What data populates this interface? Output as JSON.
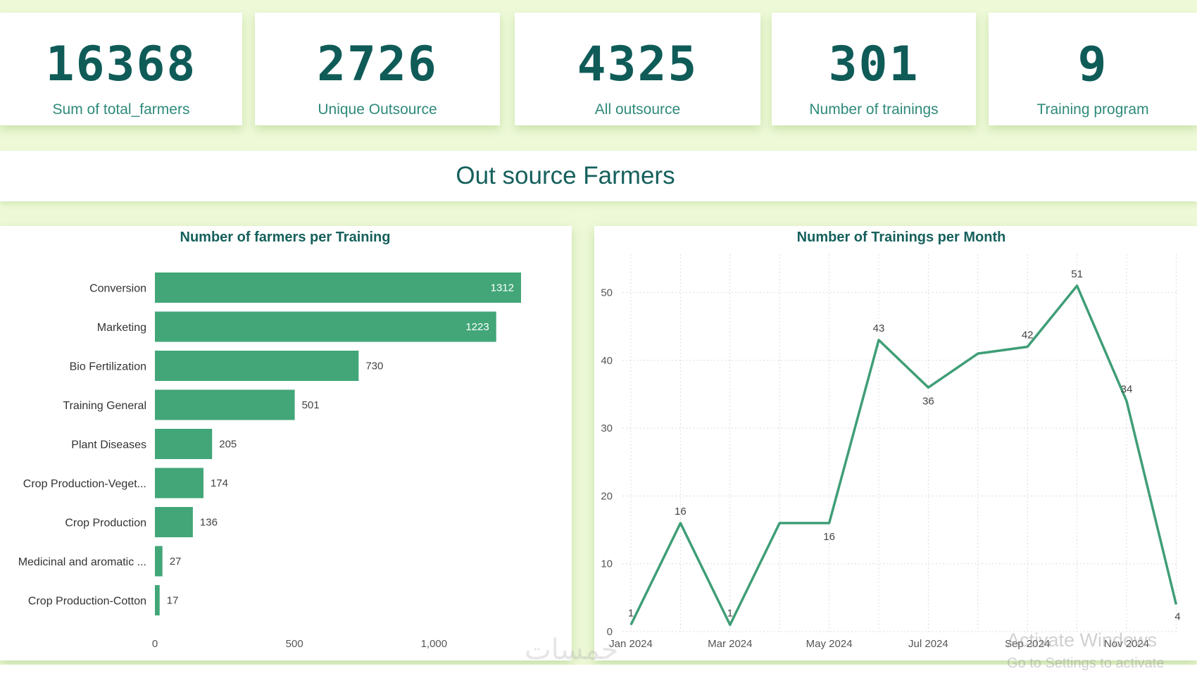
{
  "kpis": [
    {
      "value": "16368",
      "label": "Sum of total_farmers"
    },
    {
      "value": "2726",
      "label": "Unique Outsource"
    },
    {
      "value": "4325",
      "label": "All outsource"
    },
    {
      "value": "301",
      "label": "Number of trainings"
    },
    {
      "value": "9",
      "label": "Training program"
    }
  ],
  "banner_title": "Out source Farmers",
  "watermark": {
    "line1": "Activate Windows",
    "line2": "Go to Settings to activate"
  },
  "brand_mark": "خمسات",
  "colors": {
    "accent": "#42a678",
    "bar": "#42a678",
    "line": "#3f9e77",
    "title": "#15605c"
  },
  "chart_data": [
    {
      "type": "bar",
      "orientation": "horizontal",
      "title": "Number of farmers per Training",
      "categories": [
        "Conversion",
        "Marketing",
        "Bio Fertilization",
        "Training General",
        "Plant Diseases",
        "Crop Production-Veget...",
        "Crop Production",
        "Medicinal and aromatic ...",
        "Crop Production-Cotton"
      ],
      "values": [
        1312,
        1223,
        730,
        501,
        205,
        174,
        136,
        27,
        17
      ],
      "xlim": [
        0,
        1400
      ],
      "xticks": [
        0,
        500,
        1000
      ],
      "xtick_labels": [
        "0",
        "500",
        "1,000"
      ]
    },
    {
      "type": "line",
      "title": "Number of Trainings per Month",
      "x": [
        "Jan 2024",
        "Feb 2024",
        "Mar 2024",
        "Apr 2024",
        "May 2024",
        "Jun 2024",
        "Jul 2024",
        "Aug 2024",
        "Sep 2024",
        "Oct 2024",
        "Nov 2024",
        "Dec 2024"
      ],
      "values": [
        1,
        16,
        1,
        16,
        16,
        43,
        36,
        41,
        42,
        51,
        34,
        4
      ],
      "point_labels": [
        "1",
        "16",
        "1",
        "",
        "16",
        "43",
        "36",
        "",
        "42",
        "51",
        "34",
        "4"
      ],
      "xtick_labels": [
        "Jan 2024",
        "",
        "Mar 2024",
        "",
        "May 2024",
        "",
        "Jul 2024",
        "",
        "Sep 2024",
        "",
        "Nov 2024",
        ""
      ],
      "ylim": [
        0,
        55
      ],
      "yticks": [
        0,
        10,
        20,
        30,
        40,
        50
      ],
      "grid": true
    }
  ]
}
